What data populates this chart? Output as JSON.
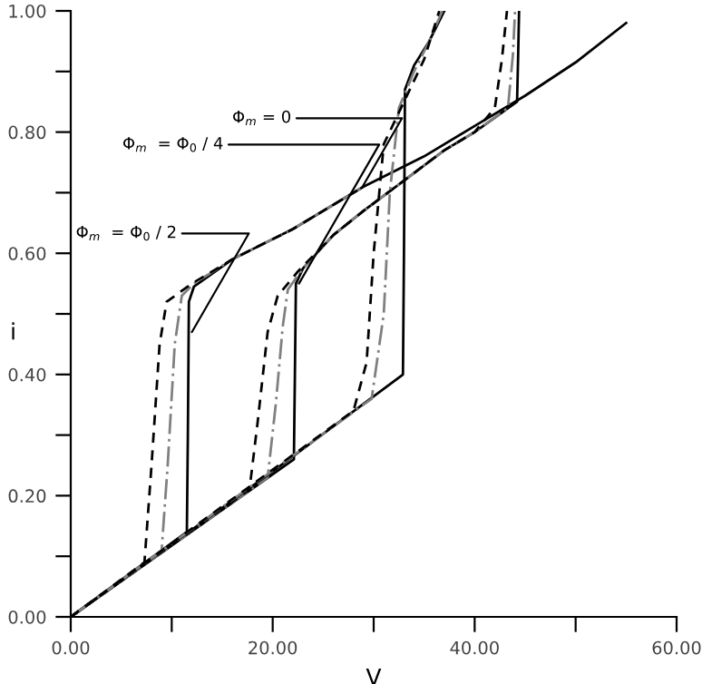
{
  "chart_data": {
    "type": "line",
    "xlabel": "V",
    "ylabel": "i",
    "xlim": [
      0,
      60
    ],
    "ylim": [
      0,
      1
    ],
    "xticks": [
      {
        "value": 0,
        "label": "0.00"
      },
      {
        "value": 10,
        "label": null
      },
      {
        "value": 20,
        "label": "20.00"
      },
      {
        "value": 30,
        "label": null
      },
      {
        "value": 40,
        "label": "40.00"
      },
      {
        "value": 50,
        "label": null
      },
      {
        "value": 60,
        "label": "60.00"
      }
    ],
    "yticks": [
      {
        "value": 0,
        "label": "0.00"
      },
      {
        "value": 0.1,
        "label": null
      },
      {
        "value": 0.2,
        "label": "0.20"
      },
      {
        "value": 0.3,
        "label": null
      },
      {
        "value": 0.4,
        "label": "0.40"
      },
      {
        "value": 0.5,
        "label": null
      },
      {
        "value": 0.6,
        "label": "0.60"
      },
      {
        "value": 0.7,
        "label": null
      },
      {
        "value": 0.8,
        "label": "0.80"
      },
      {
        "value": 0.9,
        "label": null
      },
      {
        "value": 1.0,
        "label": "1.00"
      }
    ],
    "grid": false,
    "legend": false,
    "marker": "none",
    "series": [
      {
        "color": "#000000",
        "line_style": "solid",
        "x": [
          0,
          11.5,
          11.6,
          11.7,
          12.2,
          16,
          22,
          29,
          35,
          40,
          45,
          50,
          55
        ],
        "values": [
          0,
          0.14,
          0.3,
          0.52,
          0.545,
          0.59,
          0.64,
          0.71,
          0.76,
          0.81,
          0.86,
          0.915,
          0.98
        ]
      },
      {
        "color": "#808080",
        "line_style": "dashdot",
        "x": [
          0,
          9,
          9.6,
          10.3,
          11,
          12.2,
          16,
          22,
          29
        ],
        "values": [
          0,
          0.11,
          0.25,
          0.45,
          0.53,
          0.55,
          0.59,
          0.64,
          0.71
        ]
      },
      {
        "color": "#000000",
        "line_style": "dashed",
        "x": [
          0,
          7.3,
          8.0,
          8.8,
          9.5,
          12,
          16,
          22,
          29
        ],
        "values": [
          0,
          0.09,
          0.25,
          0.45,
          0.52,
          0.55,
          0.59,
          0.64,
          0.71
        ]
      },
      {
        "color": "#000000",
        "line_style": "solid",
        "x": [
          0,
          22.1,
          22.2,
          22.3,
          23,
          26,
          29,
          33,
          37,
          40,
          44.2,
          44.3,
          44.4
        ],
        "values": [
          0,
          0.26,
          0.4,
          0.55,
          0.575,
          0.63,
          0.67,
          0.72,
          0.77,
          0.8,
          0.85,
          0.92,
          1.0
        ]
      },
      {
        "color": "#808080",
        "line_style": "dashdot",
        "x": [
          0,
          19.5,
          20.3,
          21,
          21.5,
          23,
          26,
          29,
          33,
          37,
          40,
          43.3,
          43.8,
          44.0
        ],
        "values": [
          0,
          0.23,
          0.35,
          0.48,
          0.54,
          0.575,
          0.63,
          0.67,
          0.72,
          0.77,
          0.8,
          0.84,
          0.93,
          1.0
        ]
      },
      {
        "color": "#000000",
        "line_style": "dashed",
        "x": [
          0,
          17.7,
          18.5,
          19.5,
          20.5,
          22.5,
          26,
          29,
          33,
          37,
          40,
          42.0,
          42.7,
          43.2
        ],
        "values": [
          0,
          0.21,
          0.32,
          0.47,
          0.53,
          0.57,
          0.63,
          0.67,
          0.72,
          0.77,
          0.8,
          0.84,
          0.92,
          1.0
        ]
      },
      {
        "color": "#000000",
        "line_style": "solid",
        "x": [
          0,
          20,
          32.9,
          33.0,
          33.1,
          34,
          35.5,
          37
        ],
        "values": [
          0,
          0.24,
          0.4,
          0.6,
          0.87,
          0.91,
          0.95,
          1.0
        ]
      },
      {
        "color": "#808080",
        "line_style": "dashdot",
        "x": [
          0,
          29.8,
          31.0,
          31.6,
          32.5,
          34,
          35.5,
          36.8
        ],
        "values": [
          0,
          0.36,
          0.5,
          0.7,
          0.84,
          0.9,
          0.95,
          1.0
        ]
      },
      {
        "color": "#000000",
        "line_style": "dashed",
        "x": [
          0,
          28,
          29.3,
          30.0,
          31,
          33,
          35,
          36.5
        ],
        "values": [
          0,
          0.34,
          0.42,
          0.6,
          0.78,
          0.85,
          0.92,
          1.0
        ]
      }
    ],
    "annotations": [
      {
        "text": "Φ$_{m}$ = 0",
        "x": 28.9,
        "y": 0.71
      },
      {
        "text": "Φ$_{m}$  = Φ$_{0}$ / 4",
        "x": 22.6,
        "y": 0.55
      },
      {
        "text": "Φ$_{m}$  = Φ$_{0}$ / 2",
        "x": 12.0,
        "y": 0.47
      }
    ]
  }
}
